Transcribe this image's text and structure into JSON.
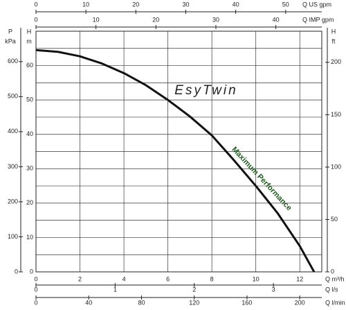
{
  "chart_data": {
    "type": "line",
    "brand": "EsyTwin",
    "annotation": "Maximum Performance",
    "annotation_color": "#1e5a1e",
    "x_label": "Q m³/h",
    "y_title": "H",
    "y_unit": "m",
    "xlim": [
      0,
      13
    ],
    "xticks": [
      0,
      2,
      4,
      6,
      8,
      10,
      12
    ],
    "ylim": [
      0,
      70
    ],
    "yticks": [
      0,
      10,
      20,
      30,
      40,
      50,
      60
    ],
    "yminor": [
      5,
      15,
      25,
      35,
      45,
      55,
      65
    ],
    "grid": true,
    "x": [
      0,
      1,
      2,
      3,
      4,
      5,
      6,
      7,
      8,
      9,
      10,
      11,
      12,
      12.65
    ],
    "series": [
      {
        "color": "#111111",
        "values": [
          64.5,
          64,
          62.7,
          60.6,
          57.8,
          54.3,
          50,
          45.2,
          39.7,
          32.5,
          25,
          17,
          7.5,
          0
        ]
      }
    ],
    "extra_axes": [
      {
        "side": "top",
        "label": "Q US gpm",
        "lim": [
          0,
          57.24
        ],
        "ticks": [
          0,
          10,
          20,
          30,
          40,
          50
        ]
      },
      {
        "side": "top",
        "label": "Q IMP gpm",
        "lim": [
          0,
          47.66
        ],
        "ticks": [
          0,
          10,
          20,
          30,
          40
        ]
      },
      {
        "side": "bottom",
        "label": "Q l/s",
        "lim": [
          0,
          3.611
        ],
        "ticks": [
          0,
          1,
          2,
          3
        ]
      },
      {
        "side": "bottom",
        "label": "Q l/min",
        "lim": [
          0,
          216.7
        ],
        "ticks": [
          0,
          40,
          80,
          120,
          160,
          200
        ]
      },
      {
        "side": "left",
        "title": "P",
        "unit": "kPa",
        "lim": [
          0,
          686.7
        ],
        "ticks": [
          0,
          100,
          200,
          300,
          400,
          500,
          600
        ]
      },
      {
        "side": "right",
        "title": "H",
        "unit": "ft",
        "lim": [
          0,
          229.7
        ],
        "ticks": [
          0,
          50,
          100,
          150,
          200
        ]
      }
    ]
  }
}
